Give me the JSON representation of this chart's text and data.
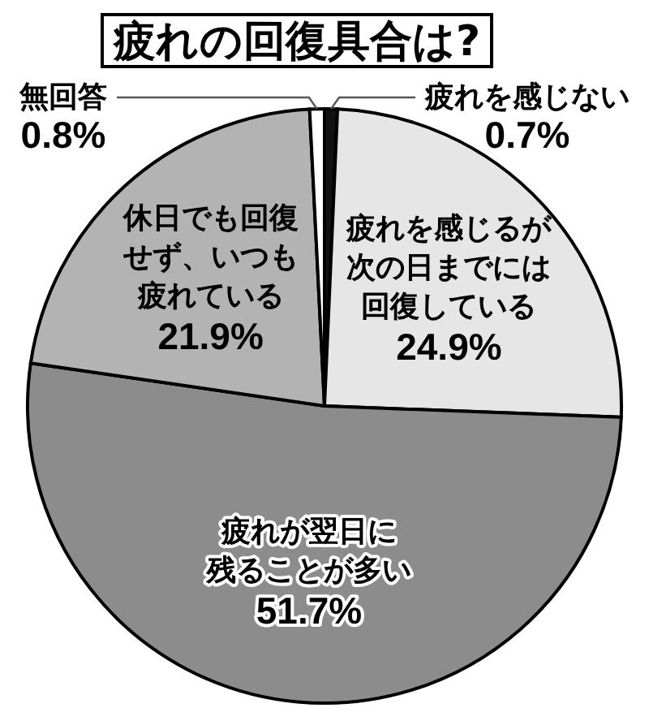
{
  "chart_data": {
    "type": "pie",
    "title": "疲れの回復具合は?",
    "categories": [
      "疲れを感じない",
      "疲れを感じるが次の日までには回復している",
      "疲れが翌日に残ることが多い",
      "休日でも回復せず、いつも疲れている",
      "無回答"
    ],
    "values": [
      0.7,
      24.9,
      51.7,
      21.9,
      0.8
    ],
    "colors": [
      "#111111",
      "#e6e6e6",
      "#8c8c8c",
      "#b3b3b3",
      "#ffffff"
    ],
    "value_labels": [
      "0.7%",
      "24.9%",
      "51.7%",
      "21.9%",
      "0.8%"
    ]
  }
}
